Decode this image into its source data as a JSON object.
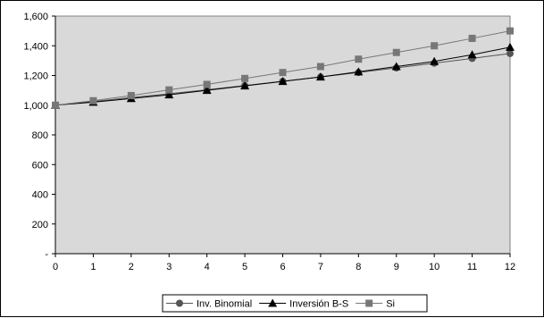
{
  "chart_data": {
    "type": "line",
    "x": [
      0,
      1,
      2,
      3,
      4,
      5,
      6,
      7,
      8,
      9,
      10,
      11,
      12
    ],
    "ylim": [
      0,
      1600
    ],
    "yticks": [
      0,
      200,
      400,
      600,
      800,
      1000,
      1200,
      1400,
      1600
    ],
    "ytick_labels": [
      "-",
      "200",
      "400",
      "600",
      "800",
      "1,000",
      "1,200",
      "1,400",
      "1,600"
    ],
    "xtick_labels": [
      "0",
      "1",
      "2",
      "3",
      "4",
      "5",
      "6",
      "7",
      "8",
      "9",
      "10",
      "11",
      "12"
    ],
    "grid": false,
    "plot_background": "#d9d9d9",
    "legend_position": "bottom",
    "series": [
      {
        "name": "Inv. Binomial",
        "marker": "circle",
        "color": "#555555",
        "values": [
          1000,
          1025,
          1051,
          1077,
          1104,
          1132,
          1161,
          1190,
          1220,
          1251,
          1283,
          1315,
          1348
        ]
      },
      {
        "name": "Inversión B-S",
        "marker": "triangle",
        "color": "#000000",
        "values": [
          1000,
          1020,
          1045,
          1070,
          1100,
          1130,
          1160,
          1190,
          1225,
          1260,
          1295,
          1340,
          1390
        ]
      },
      {
        "name": "Si",
        "marker": "square",
        "color": "#777777",
        "values": [
          1000,
          1030,
          1065,
          1103,
          1140,
          1180,
          1220,
          1260,
          1310,
          1355,
          1400,
          1450,
          1500
        ]
      }
    ]
  }
}
